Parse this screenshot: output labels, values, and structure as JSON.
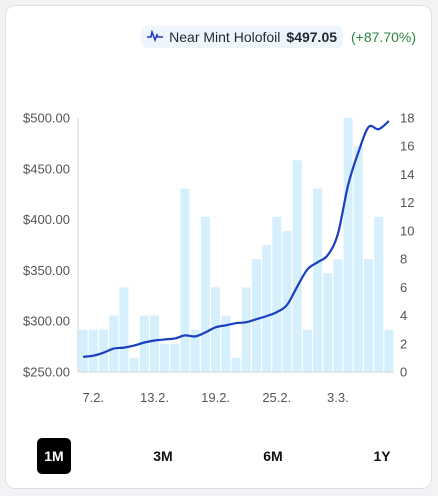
{
  "legend": {
    "icon": "price-line-icon",
    "name": "Near Mint Holofoil",
    "price": "$497.05",
    "change": "(+87.70%)",
    "change_color": "#2e8540"
  },
  "tabs": [
    {
      "label": "1M",
      "active": true
    },
    {
      "label": "3M",
      "active": false
    },
    {
      "label": "6M",
      "active": false
    },
    {
      "label": "1Y",
      "active": false
    }
  ],
  "chart_data": {
    "type": "bar+line",
    "x_tick_labels": [
      "7.2.",
      "13.2.",
      "19.2.",
      "25.2.",
      "3.3."
    ],
    "x_tick_index": [
      1,
      7,
      13,
      19,
      25
    ],
    "y_left": {
      "min": 250,
      "max": 500,
      "ticks": [
        "$250.00",
        "$300.00",
        "$350.00",
        "$400.00",
        "$450.00",
        "$500.00"
      ]
    },
    "y_right": {
      "min": 0,
      "max": 18,
      "ticks": [
        "0",
        "2",
        "4",
        "6",
        "8",
        "10",
        "12",
        "14",
        "16",
        "18"
      ]
    },
    "bars_color": "#d6effc",
    "line_color": "#1a3fbf",
    "bar_values": [
      3,
      3,
      3,
      4,
      6,
      1,
      4,
      4,
      2,
      2,
      13,
      3,
      11,
      6,
      4,
      1,
      6,
      8,
      9,
      11,
      10,
      15,
      3,
      13,
      7,
      8,
      18,
      16,
      8,
      11,
      3
    ],
    "line_values": [
      265,
      266,
      269,
      273,
      274,
      276,
      279,
      281,
      282,
      283,
      286,
      285,
      289,
      294,
      296,
      298,
      299,
      302,
      305,
      309,
      316,
      334,
      351,
      358,
      365,
      386,
      434,
      466,
      491,
      489,
      497
    ]
  }
}
